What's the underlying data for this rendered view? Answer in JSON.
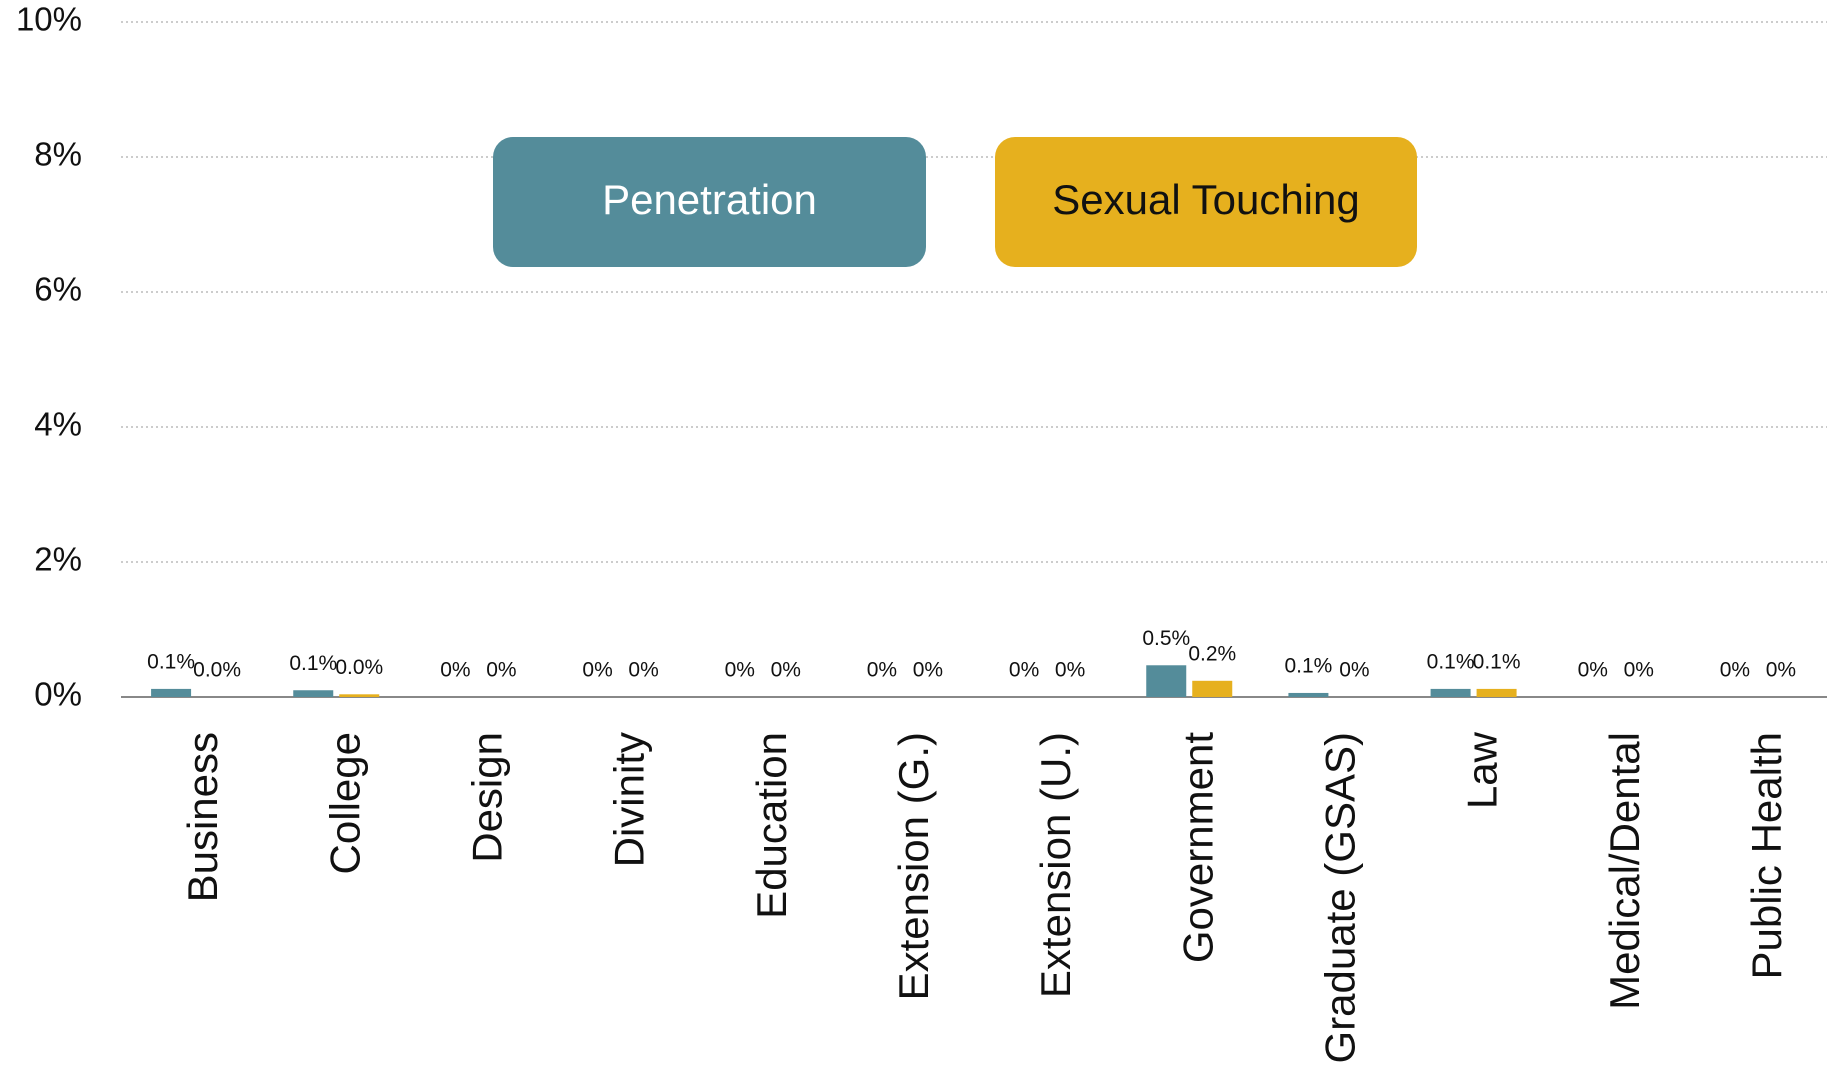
{
  "chart_data": {
    "type": "bar",
    "categories": [
      "Business",
      "College",
      "Design",
      "Divinity",
      "Education",
      "Extension (G.)",
      "Extension (U.)",
      "Government",
      "Graduate (GSAS)",
      "Law",
      "Medical/Dental",
      "Public Health"
    ],
    "series": [
      {
        "name": "Penetration",
        "color": "#548c9a",
        "values": [
          0.12,
          0.1,
          0,
          0,
          0,
          0,
          0,
          0.47,
          0.06,
          0.12,
          0,
          0
        ],
        "value_labels": [
          "0.1%",
          "0.1%",
          "0%",
          "0%",
          "0%",
          "0%",
          "0%",
          "0.5%",
          "0.1%",
          "0.1%",
          "0%",
          "0%"
        ]
      },
      {
        "name": "Sexual Touching",
        "color": "#e6b01e",
        "values": [
          0,
          0.04,
          0,
          0,
          0,
          0,
          0,
          0.24,
          0,
          0.12,
          0,
          0
        ],
        "value_labels": [
          "0.0%",
          "0.0%",
          "0%",
          "0%",
          "0%",
          "0%",
          "0%",
          "0.2%",
          "0%",
          "0.1%",
          "0%",
          "0%"
        ]
      }
    ],
    "ylim": [
      0,
      10
    ],
    "yticks": [
      {
        "value": 0,
        "label": "0%"
      },
      {
        "value": 2,
        "label": "2%"
      },
      {
        "value": 4,
        "label": "4%"
      },
      {
        "value": 6,
        "label": "6%"
      },
      {
        "value": 8,
        "label": "8%"
      },
      {
        "value": 10,
        "label": "10%"
      }
    ],
    "grid": true
  }
}
